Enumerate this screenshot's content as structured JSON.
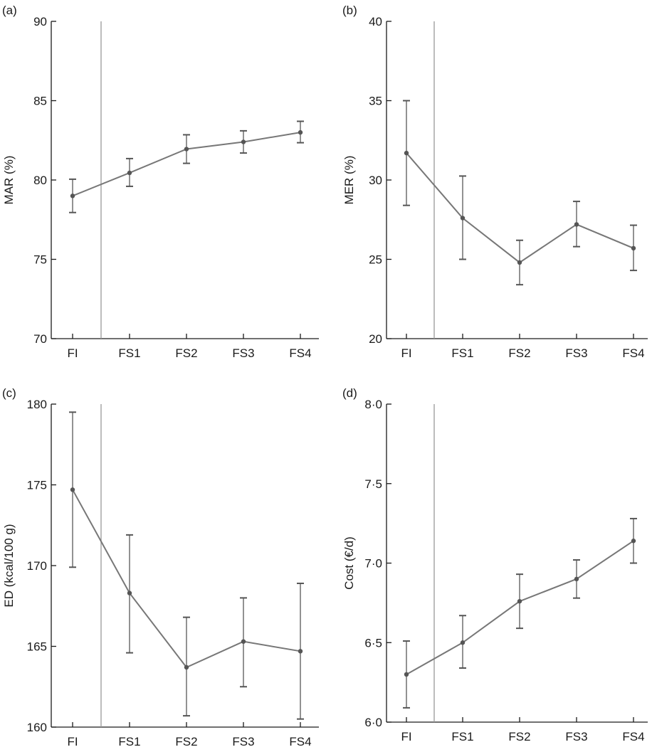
{
  "colors": {
    "line": "#777777",
    "axis": "#1a1a1a",
    "separator": "#999999",
    "marker": "#555555"
  },
  "chart_data": [
    {
      "panel": "(a)",
      "type": "line",
      "ylabel": "MAR (%)",
      "categories": [
        "FI",
        "FS1",
        "FS2",
        "FS3",
        "FS4"
      ],
      "ylim": [
        70,
        90
      ],
      "yticks": [
        "70",
        "75",
        "80",
        "85",
        "90"
      ],
      "yticks_values": [
        70,
        75,
        80,
        85,
        90
      ],
      "values": [
        79.0,
        80.45,
        81.95,
        82.4,
        83.0
      ],
      "err_low": [
        77.95,
        79.6,
        81.05,
        81.7,
        82.35
      ],
      "err_high": [
        80.05,
        81.35,
        82.85,
        83.1,
        83.7
      ]
    },
    {
      "panel": "(b)",
      "type": "line",
      "ylabel": "MER (%)",
      "categories": [
        "FI",
        "FS1",
        "FS2",
        "FS3",
        "FS4"
      ],
      "ylim": [
        20,
        40
      ],
      "yticks": [
        "20",
        "25",
        "30",
        "35",
        "40"
      ],
      "yticks_values": [
        20,
        25,
        30,
        35,
        40
      ],
      "values": [
        31.7,
        27.6,
        24.8,
        27.2,
        25.7
      ],
      "err_low": [
        28.4,
        25.0,
        23.4,
        25.8,
        24.3
      ],
      "err_high": [
        35.0,
        30.25,
        26.2,
        28.65,
        27.15
      ]
    },
    {
      "panel": "(c)",
      "type": "line",
      "ylabel": "ED (kcal/100 g)",
      "categories": [
        "FI",
        "FS1",
        "FS2",
        "FS3",
        "FS4"
      ],
      "ylim": [
        160,
        180
      ],
      "yticks": [
        "160",
        "165",
        "170",
        "175",
        "180"
      ],
      "yticks_values": [
        160,
        165,
        170,
        175,
        180
      ],
      "values": [
        174.7,
        168.3,
        163.7,
        165.3,
        164.7
      ],
      "err_low": [
        169.9,
        164.6,
        160.7,
        162.5,
        160.5
      ],
      "err_high": [
        179.5,
        171.9,
        166.8,
        168.0,
        168.9
      ]
    },
    {
      "panel": "(d)",
      "type": "line",
      "ylabel": "Cost (€/d)",
      "categories": [
        "FI",
        "FS1",
        "FS2",
        "FS3",
        "FS4"
      ],
      "ylim": [
        6.0,
        8.0
      ],
      "yticks": [
        "6·0",
        "6·5",
        "7·0",
        "7·5",
        "8·0"
      ],
      "yticks_values": [
        6.0,
        6.5,
        7.0,
        7.5,
        8.0
      ],
      "values": [
        6.3,
        6.5,
        6.76,
        6.9,
        7.14
      ],
      "err_low": [
        6.09,
        6.34,
        6.59,
        6.78,
        7.0
      ],
      "err_high": [
        6.51,
        6.67,
        6.93,
        7.02,
        7.28
      ]
    }
  ]
}
